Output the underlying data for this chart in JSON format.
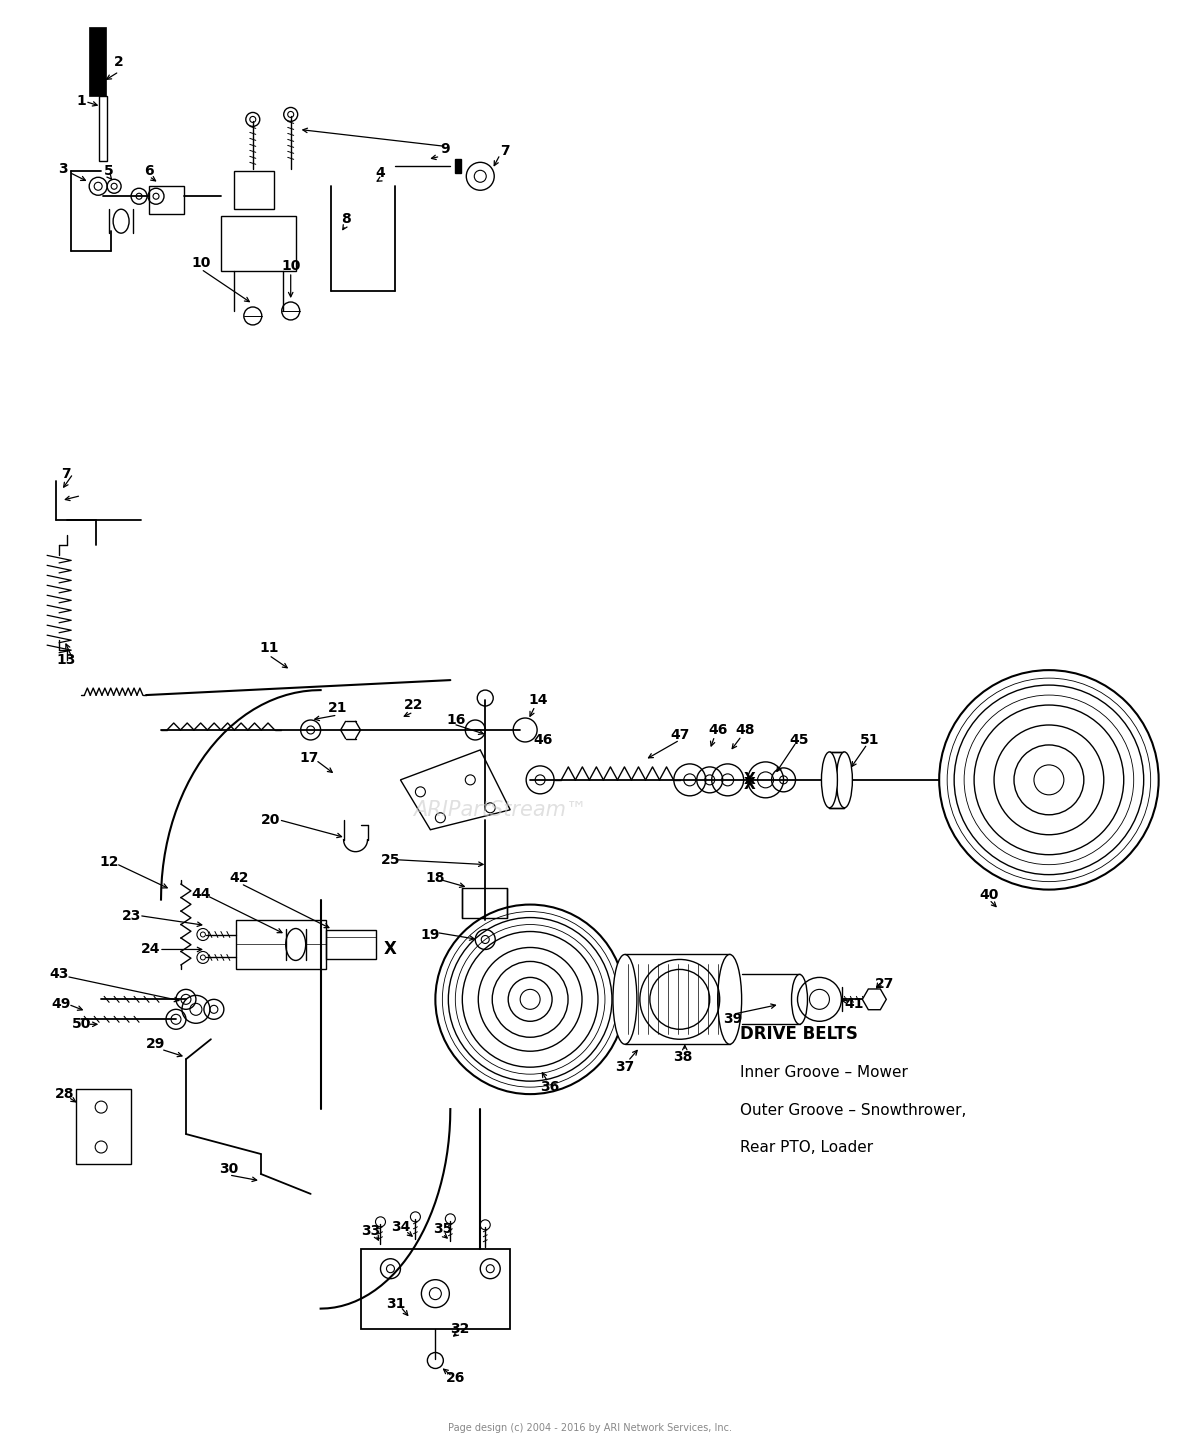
{
  "bg_color": "#ffffff",
  "fig_width": 11.8,
  "fig_height": 14.46,
  "watermark": "ARIPartStream™",
  "copyright_text": "Page design (c) 2004 - 2016 by ARI Network Services, Inc.",
  "drive_belts_lines": [
    "DRIVE BELTS",
    "Inner Groove – Mower",
    "Outer Groove – Snowthrower,",
    "Rear PTO, Loader"
  ]
}
